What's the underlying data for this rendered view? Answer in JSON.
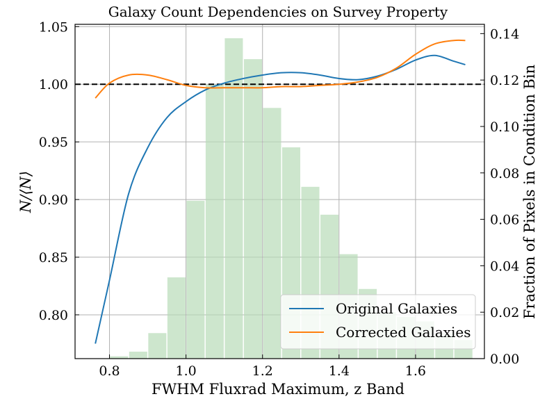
{
  "chart_data": {
    "type": "line",
    "title": "Galaxy Count Dependencies on Survey Property",
    "xlabel": "FWHM Fluxrad Maximum, z Band",
    "ylabel": "N/⟨N⟩",
    "ylabel_right": "Fraction of Pixels in Condition Bin",
    "xlim": [
      0.71,
      1.78
    ],
    "ylim": [
      0.762,
      1.052
    ],
    "ylim_right": [
      0.0,
      0.144
    ],
    "x_ticks": [
      "0.8",
      "1.0",
      "1.2",
      "1.4",
      "1.6"
    ],
    "y_ticks": [
      "0.80",
      "0.85",
      "0.90",
      "0.95",
      "1.00",
      "1.05"
    ],
    "y_ticks_right": [
      "0.00",
      "0.02",
      "0.04",
      "0.06",
      "0.08",
      "0.10",
      "0.12",
      "0.14"
    ],
    "grid": true,
    "legend_position": "lower-right",
    "reference_line": {
      "y": 1.0,
      "style": "dashed",
      "color": "#000000"
    },
    "series": [
      {
        "name": "Original Galaxies",
        "color": "#1f77b4",
        "x": [
          0.763,
          0.8,
          0.85,
          0.9,
          0.95,
          1.0,
          1.05,
          1.1,
          1.15,
          1.2,
          1.25,
          1.3,
          1.35,
          1.4,
          1.45,
          1.5,
          1.55,
          1.6,
          1.65,
          1.7,
          1.73
        ],
        "values": [
          0.775,
          0.83,
          0.905,
          0.945,
          0.971,
          0.985,
          0.995,
          1.001,
          1.005,
          1.008,
          1.01,
          1.01,
          1.008,
          1.005,
          1.004,
          1.007,
          1.013,
          1.021,
          1.025,
          1.02,
          1.017
        ]
      },
      {
        "name": "Corrected Galaxies",
        "color": "#ff7f0e",
        "x": [
          0.763,
          0.8,
          0.85,
          0.9,
          0.95,
          1.0,
          1.05,
          1.1,
          1.15,
          1.2,
          1.25,
          1.3,
          1.35,
          1.4,
          1.45,
          1.5,
          1.55,
          1.6,
          1.65,
          1.7,
          1.73
        ],
        "values": [
          0.988,
          1.001,
          1.008,
          1.008,
          1.004,
          0.999,
          0.997,
          0.997,
          0.997,
          0.997,
          0.998,
          0.998,
          0.999,
          1.0,
          1.002,
          1.006,
          1.014,
          1.026,
          1.035,
          1.038,
          1.038
        ]
      }
    ],
    "histogram": {
      "axis": "right",
      "color": "#b8dcb8",
      "bin_centers": [
        0.775,
        0.825,
        0.875,
        0.925,
        0.975,
        1.025,
        1.075,
        1.125,
        1.175,
        1.225,
        1.275,
        1.325,
        1.375,
        1.425,
        1.475,
        1.525,
        1.575,
        1.625,
        1.675,
        1.725
      ],
      "bin_width": 0.05,
      "values": [
        0.0,
        0.001,
        0.003,
        0.011,
        0.035,
        0.068,
        0.118,
        0.138,
        0.129,
        0.108,
        0.091,
        0.074,
        0.062,
        0.045,
        0.03,
        0.02,
        0.018,
        0.016,
        0.011,
        0.008
      ]
    }
  }
}
